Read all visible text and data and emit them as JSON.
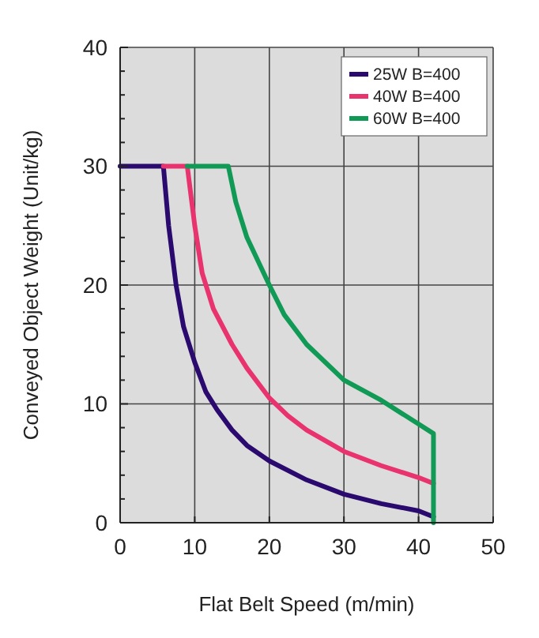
{
  "chart_data": {
    "type": "line",
    "xlabel": "Flat Belt Speed (m/min)",
    "ylabel": "Conveyed Object Weight (Unit/kg)",
    "xlim": [
      0,
      50
    ],
    "xticks": [
      0,
      10,
      20,
      30,
      40,
      50
    ],
    "ylim": [
      0,
      40
    ],
    "yticks": [
      0,
      {
        "value": 2,
        "label": null
      },
      {
        "value": 4,
        "label": null
      },
      {
        "value": 6,
        "label": null
      },
      {
        "value": 8,
        "label": null
      },
      10,
      {
        "value": 12,
        "label": null
      },
      {
        "value": 14,
        "label": null
      },
      {
        "value": 16,
        "label": null
      },
      {
        "value": 18,
        "label": null
      },
      20,
      {
        "value": 22,
        "label": null
      },
      {
        "value": 24,
        "label": null
      },
      {
        "value": 26,
        "label": null
      },
      {
        "value": 28,
        "label": null
      },
      30,
      {
        "value": 32,
        "label": null
      },
      {
        "value": 34,
        "label": null
      },
      {
        "value": 36,
        "label": null
      },
      {
        "value": 38,
        "label": null
      },
      40
    ],
    "grid": true,
    "legend": "top right",
    "series": [
      {
        "name": "25W B=400",
        "color": "#2a0a6e",
        "x": [
          0,
          5.8,
          6.5,
          7.5,
          8.5,
          10,
          11.5,
          13,
          15,
          17,
          20,
          25,
          30,
          35,
          40,
          42
        ],
        "values": [
          30,
          30,
          25,
          20,
          16.5,
          13.5,
          11,
          9.5,
          7.8,
          6.5,
          5.2,
          3.6,
          2.4,
          1.6,
          1,
          0.5
        ]
      },
      {
        "name": "40W B=400",
        "color": "#e8336f",
        "x": [
          5.8,
          9,
          10,
          11,
          12.5,
          15,
          17,
          20,
          22.5,
          25,
          30,
          35,
          40,
          42
        ],
        "values": [
          30,
          30,
          25,
          21,
          18,
          15,
          13,
          10.5,
          9,
          7.8,
          6,
          4.8,
          3.8,
          3.3
        ]
      },
      {
        "name": "60W B=400",
        "color": "#119a55",
        "x": [
          9,
          14.5,
          15.5,
          17,
          20,
          22,
          25,
          30,
          35,
          40,
          42,
          42
        ],
        "values": [
          30,
          30,
          27,
          24,
          20,
          17.5,
          15,
          12,
          10.3,
          8.3,
          7.5,
          0
        ]
      }
    ]
  }
}
